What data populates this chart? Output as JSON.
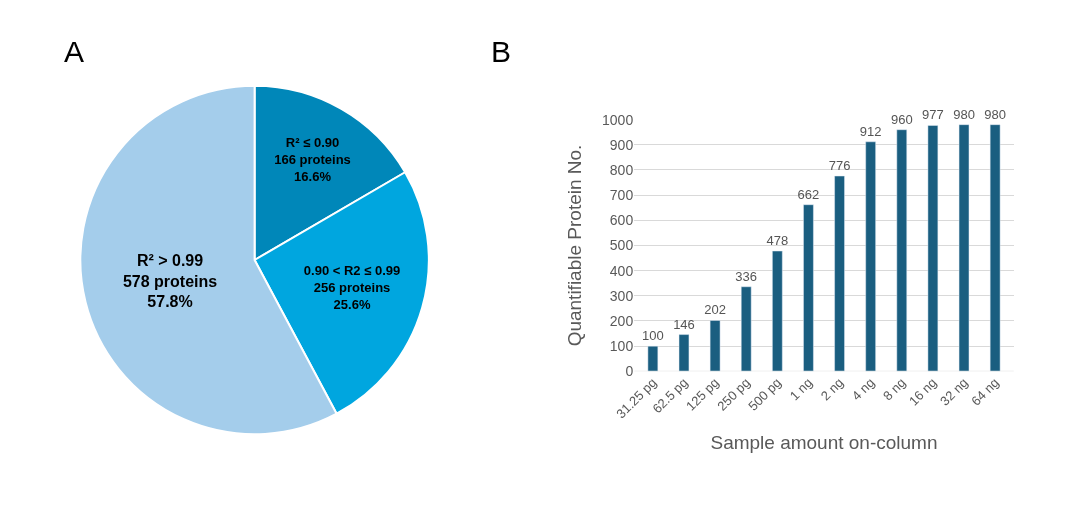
{
  "chart_data": [
    {
      "type": "pie",
      "title": "A",
      "categories": [
        "R² ≤ 0.90",
        "0.90 < R2 ≤ 0.99",
        "R² > 0.99"
      ],
      "values": [
        166,
        256,
        578
      ],
      "colors": [
        "#0087b9",
        "#00a6df",
        "#a4cdeb"
      ],
      "value_labels": [
        "166 proteins\n16.6%",
        "256 proteins\n25.6%",
        "578 proteins\n57.8%"
      ]
    },
    {
      "type": "bar",
      "title": "B",
      "xlabel": "Sample amount on-column",
      "ylabel": "Quantifiable Protein No.",
      "categories": [
        "31.25 pg",
        "62.5 pg",
        "125 pg",
        "250 pg",
        "500 pg",
        "1 ng",
        "2 ng",
        "4 ng",
        "8 ng",
        "16 ng",
        "32 ng",
        "64 ng"
      ],
      "series": [
        {
          "color": "#1a5e80",
          "values": [
            100,
            146,
            202,
            336,
            478,
            662,
            776,
            912,
            960,
            977,
            980,
            980
          ]
        }
      ],
      "ylim": [
        0,
        1000
      ],
      "yticks": [
        0,
        100,
        200,
        300,
        400,
        500,
        600,
        700,
        800,
        900,
        1000
      ],
      "grid": "y",
      "data_labels": true
    }
  ]
}
